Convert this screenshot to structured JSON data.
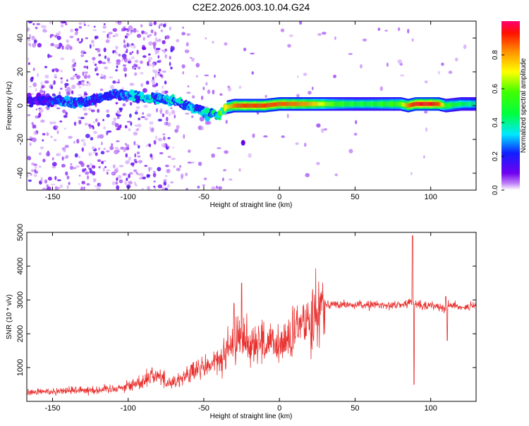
{
  "title": "C2E2.2026.003.10.04.G24",
  "colors": {
    "snr_line": "#e8312f",
    "axis": "#000000",
    "background": "#ffffff"
  },
  "chart_data": [
    {
      "type": "heatmap",
      "title": "C2E2.2026.003.10.04.G24",
      "xlabel": "Height of straight line (km)",
      "ylabel": "Frequency (Hz)",
      "xlim": [
        -167,
        130
      ],
      "ylim": [
        -50,
        50
      ],
      "x_ticks": [
        -150,
        -100,
        -50,
        0,
        50,
        100
      ],
      "x_tick_labels": [
        "-150",
        "-100",
        "-50",
        "0",
        "50",
        "100"
      ],
      "y_ticks": [
        -40,
        -20,
        0,
        20,
        40
      ],
      "y_tick_labels": [
        "-40",
        "-20",
        "0",
        "20",
        "40"
      ],
      "colorbar": {
        "label": "Normalized spectral amplitude",
        "range": [
          0,
          1
        ],
        "ticks": [
          0.0,
          0.2,
          0.4,
          0.6,
          0.8
        ],
        "tick_labels": [
          "0.0",
          "0.2",
          "0.4",
          "0.6",
          "0.8"
        ]
      },
      "ridge": {
        "x": [
          -165,
          -150,
          -140,
          -130,
          -120,
          -110,
          -100,
          -90,
          -80,
          -70,
          -60,
          -50,
          -40,
          -35,
          -30,
          -25,
          -20,
          -10,
          0,
          10,
          20,
          30,
          40,
          50,
          60,
          70,
          80,
          85,
          90,
          100,
          105,
          110,
          120,
          130
        ],
        "frequency": [
          3,
          3,
          2,
          2,
          4,
          7,
          6,
          5,
          4,
          3,
          0,
          -4,
          -6,
          -1,
          0,
          0,
          0,
          0,
          1,
          1,
          1,
          1,
          1,
          1,
          1,
          1,
          1,
          0,
          1,
          1,
          1,
          0,
          1,
          1
        ],
        "amplitude": [
          0.15,
          0.25,
          0.3,
          0.3,
          0.25,
          0.25,
          0.3,
          0.35,
          0.35,
          0.35,
          0.35,
          0.35,
          0.45,
          0.7,
          0.85,
          0.9,
          0.9,
          0.9,
          0.88,
          0.85,
          0.8,
          0.65,
          0.55,
          0.5,
          0.5,
          0.55,
          0.6,
          0.85,
          0.95,
          0.95,
          0.9,
          0.55,
          0.45,
          0.4
        ]
      }
    },
    {
      "type": "line",
      "xlabel": "Height of straight line (km)",
      "ylabel": "SNR (10 * v/v)",
      "xlim": [
        -167,
        130
      ],
      "ylim": [
        0,
        5000
      ],
      "x_ticks": [
        -150,
        -100,
        -50,
        0,
        50,
        100
      ],
      "x_tick_labels": [
        "-150",
        "-100",
        "-50",
        "0",
        "50",
        "100"
      ],
      "y_ticks": [
        1000,
        2000,
        3000,
        4000,
        5000
      ],
      "y_tick_labels": [
        "1000",
        "2000",
        "3000",
        "4000",
        "5000"
      ],
      "series": [
        {
          "name": "SNR",
          "color": "#e8312f",
          "x": [
            -167,
            -160,
            -150,
            -140,
            -130,
            -120,
            -110,
            -100,
            -90,
            -85,
            -80,
            -75,
            -70,
            -65,
            -60,
            -55,
            -50,
            -45,
            -40,
            -35,
            -30,
            -28,
            -25,
            -22,
            -20,
            -15,
            -10,
            -5,
            0,
            5,
            10,
            15,
            20,
            25,
            30,
            40,
            50,
            60,
            70,
            80,
            85,
            88,
            89,
            90,
            92,
            95,
            100,
            108,
            110,
            112,
            120,
            130
          ],
          "y": [
            250,
            280,
            300,
            320,
            350,
            330,
            380,
            450,
            600,
            800,
            750,
            600,
            550,
            700,
            800,
            900,
            1000,
            1100,
            1200,
            1400,
            1700,
            2000,
            1800,
            1900,
            1700,
            1800,
            1700,
            1650,
            1650,
            1800,
            2000,
            2300,
            2500,
            2800,
            2900,
            2850,
            2850,
            2850,
            2850,
            2850,
            2900,
            3000,
            2800,
            2900,
            2850,
            2800,
            2850,
            2800,
            2700,
            2850,
            2800,
            2800
          ]
        }
      ],
      "spikes": [
        {
          "x": -25,
          "y": 3500
        },
        {
          "x": -30,
          "y": 2900
        },
        {
          "x": 88,
          "y": 4900
        },
        {
          "x": 89,
          "y": 500
        },
        {
          "x": 110,
          "y": 3100
        },
        {
          "x": 111,
          "y": 1800
        }
      ]
    }
  ]
}
